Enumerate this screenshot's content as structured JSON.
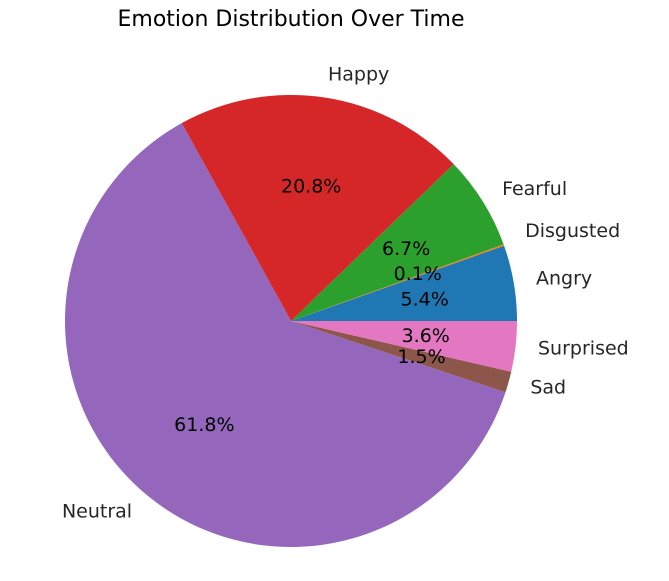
{
  "chart_data": {
    "type": "pie",
    "title": "Emotion Distribution Over Time",
    "start_angle_deg": 0,
    "direction": "counterclockwise",
    "slices": [
      {
        "label": "Angry",
        "value": 5.4,
        "pct_text": "5.4%",
        "color": "#1f77b4"
      },
      {
        "label": "Disgusted",
        "value": 0.1,
        "pct_text": "0.1%",
        "color": "#ff7f0e"
      },
      {
        "label": "Fearful",
        "value": 6.7,
        "pct_text": "6.7%",
        "color": "#2ca02c"
      },
      {
        "label": "Happy",
        "value": 20.8,
        "pct_text": "20.8%",
        "color": "#d62728"
      },
      {
        "label": "Neutral",
        "value": 61.8,
        "pct_text": "61.8%",
        "color": "#9467bd"
      },
      {
        "label": "Sad",
        "value": 1.5,
        "pct_text": "1.5%",
        "color": "#8c564b"
      },
      {
        "label": "Surprised",
        "value": 3.6,
        "pct_text": "3.6%",
        "color": "#e377c2"
      }
    ]
  }
}
